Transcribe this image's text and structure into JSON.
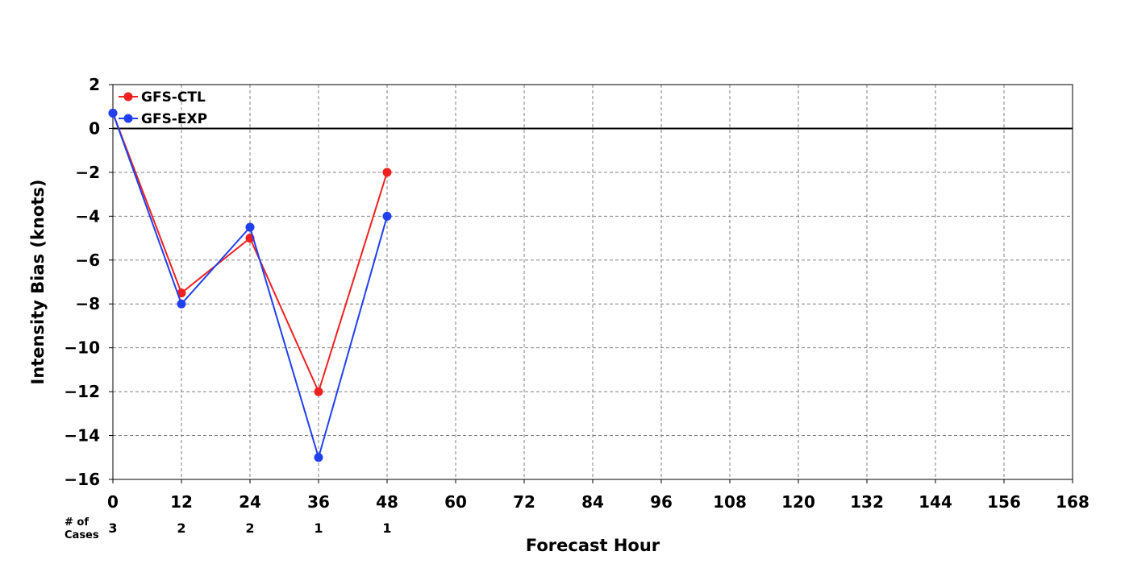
{
  "chart_data": {
    "type": "line",
    "xlabel": "Forecast Hour",
    "ylabel": "Intensity Bias (knots)",
    "x": [
      0,
      12,
      24,
      36,
      48
    ],
    "series": [
      {
        "name": "GFS-CTL",
        "color": "#f02020",
        "values": [
          0.7,
          -7.5,
          -5,
          -12,
          -2
        ]
      },
      {
        "name": "GFS-EXP",
        "color": "#2040f0",
        "values": [
          0.7,
          -8,
          -4.5,
          -15,
          -4
        ]
      }
    ],
    "xlim": [
      0,
      168
    ],
    "xticks": [
      0,
      12,
      24,
      36,
      48,
      60,
      72,
      84,
      96,
      108,
      120,
      132,
      144,
      156,
      168
    ],
    "ylim": [
      -16,
      2
    ],
    "yticks": [
      {
        "value": -16,
        "label": "−16"
      },
      {
        "value": -14,
        "label": "−14"
      },
      {
        "value": -12,
        "label": "−12"
      },
      {
        "value": -10,
        "label": "−10"
      },
      {
        "value": -8,
        "label": "−8"
      },
      {
        "value": -6,
        "label": "−6"
      },
      {
        "value": -4,
        "label": "−4"
      },
      {
        "value": -2,
        "label": "−2"
      },
      0,
      2
    ],
    "reference_line": 0,
    "grid": true,
    "legend": "upper left",
    "cases_label": [
      "# of",
      "Cases"
    ],
    "cases": [
      3,
      2,
      2,
      1,
      1
    ]
  }
}
